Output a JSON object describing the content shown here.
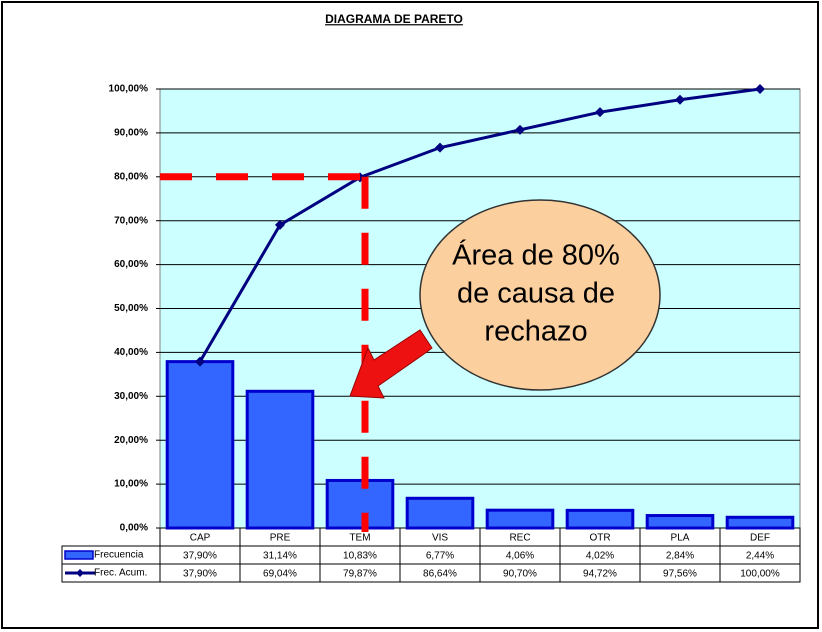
{
  "chart_data": {
    "type": "pareto",
    "title": "DIAGRAMA DE PARETO",
    "categories": [
      "CAP",
      "PRE",
      "TEM",
      "VIS",
      "REC",
      "OTR",
      "PLA",
      "DEF"
    ],
    "series": [
      {
        "name": "Frecuencia",
        "color": "#3366ff",
        "kind": "bar",
        "values": [
          37.9,
          31.14,
          10.83,
          6.77,
          4.06,
          4.02,
          2.84,
          2.44
        ],
        "value_labels": [
          "37,90%",
          "31,14%",
          "10,83%",
          "6,77%",
          "4,06%",
          "4,02%",
          "2,84%",
          "2,44%"
        ]
      },
      {
        "name": "Frec. Acum.",
        "color": "#000080",
        "kind": "line",
        "values": [
          37.9,
          69.04,
          79.87,
          86.64,
          90.7,
          94.72,
          97.56,
          100
        ],
        "value_labels": [
          "37,90%",
          "69,04%",
          "79,87%",
          "86,64%",
          "90,70%",
          "94,72%",
          "97,56%",
          "100,00%"
        ]
      }
    ],
    "ylim": [
      0,
      100
    ],
    "yticks": [
      {
        "value": 0,
        "label": "0,00%"
      },
      {
        "value": 10,
        "label": "10,00%"
      },
      {
        "value": 20,
        "label": "20,00%"
      },
      {
        "value": 30,
        "label": "30,00%"
      },
      {
        "value": 40,
        "label": "40,00%"
      },
      {
        "value": 50,
        "label": "50,00%"
      },
      {
        "value": 60,
        "label": "60,00%"
      },
      {
        "value": 70,
        "label": "70,00%"
      },
      {
        "value": 80,
        "label": "80,00%"
      },
      {
        "value": 90,
        "label": "90,00%"
      },
      {
        "value": 100,
        "label": "100,00%"
      }
    ],
    "grid": true,
    "threshold": 80,
    "annotation": [
      "Área de 80%",
      "de causa de",
      "rechazo"
    ]
  }
}
